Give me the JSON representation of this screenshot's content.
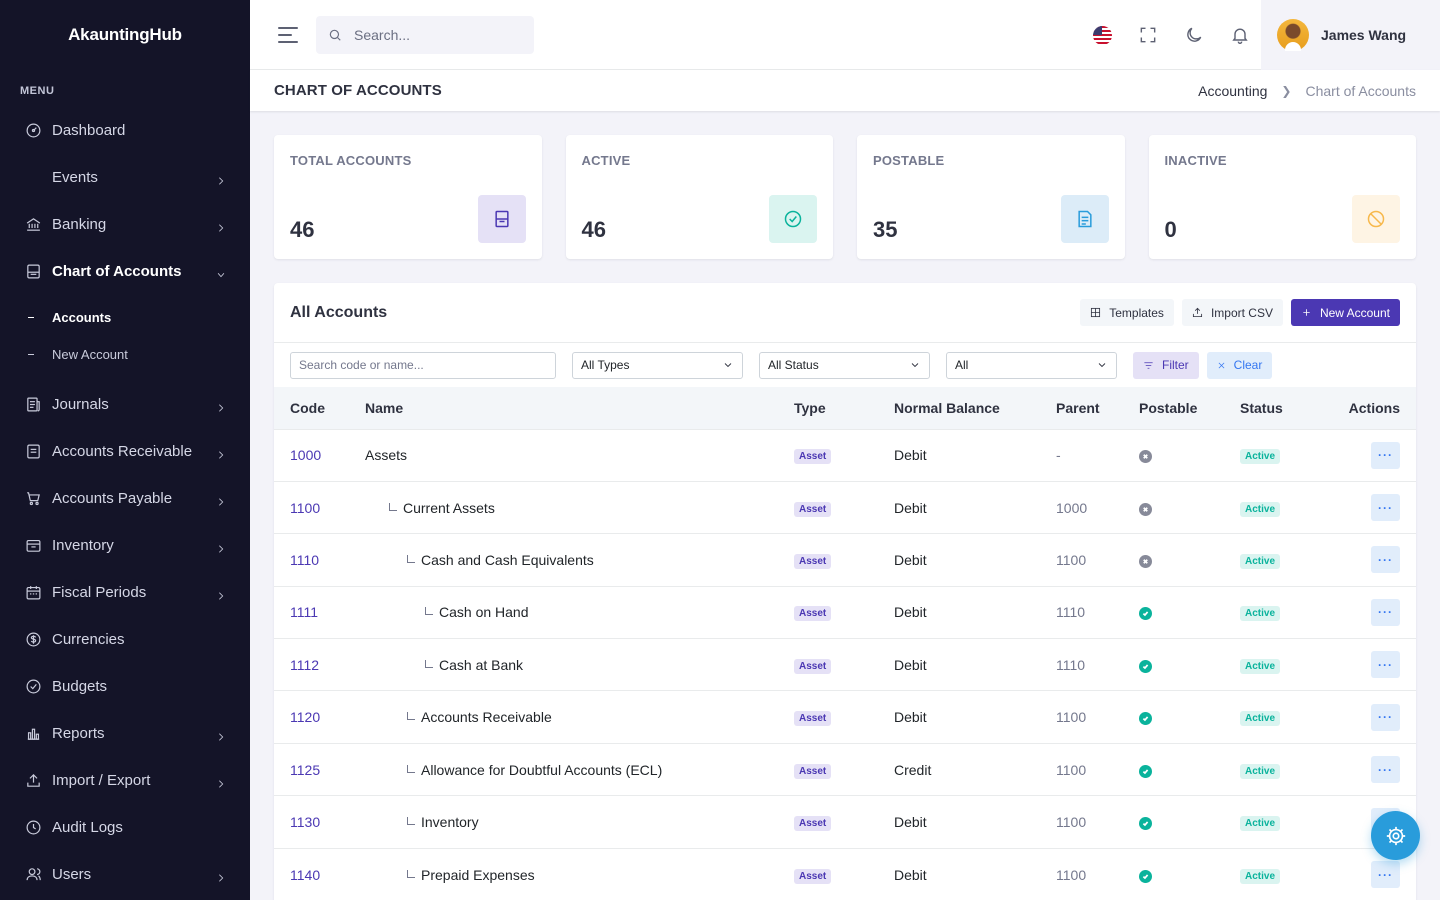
{
  "app": {
    "brand": "AkauntingHub"
  },
  "sidebar": {
    "menu_title": "MENU",
    "items": [
      {
        "label": "Dashboard",
        "icon": "dashboard-icon",
        "chevron": false
      },
      {
        "label": "Events",
        "icon": "",
        "chevron": true
      },
      {
        "label": "Banking",
        "icon": "bank-icon",
        "chevron": true
      },
      {
        "label": "Chart of Accounts",
        "icon": "ledger-icon",
        "chevron": true,
        "open": true
      },
      {
        "label": "Journals",
        "icon": "journal-icon",
        "chevron": true
      },
      {
        "label": "Accounts Receivable",
        "icon": "receivable-icon",
        "chevron": true
      },
      {
        "label": "Accounts Payable",
        "icon": "cart-icon",
        "chevron": true
      },
      {
        "label": "Inventory",
        "icon": "inventory-icon",
        "chevron": true
      },
      {
        "label": "Fiscal Periods",
        "icon": "calendar-icon",
        "chevron": true
      },
      {
        "label": "Currencies",
        "icon": "currency-icon",
        "chevron": false
      },
      {
        "label": "Budgets",
        "icon": "budget-icon",
        "chevron": false
      },
      {
        "label": "Reports",
        "icon": "bar-chart-icon",
        "chevron": true
      },
      {
        "label": "Import / Export",
        "icon": "upload-icon",
        "chevron": true
      },
      {
        "label": "Audit Logs",
        "icon": "history-icon",
        "chevron": false
      },
      {
        "label": "Users",
        "icon": "users-icon",
        "chevron": true
      }
    ],
    "subitems": [
      {
        "label": "Accounts",
        "active": true
      },
      {
        "label": "New Account",
        "active": false
      }
    ]
  },
  "topbar": {
    "search_placeholder": "Search...",
    "user_name": "James Wang"
  },
  "page": {
    "title": "CHART OF ACCOUNTS",
    "breadcrumb": [
      "Accounting",
      "Chart of Accounts"
    ]
  },
  "stats": [
    {
      "label": "TOTAL ACCOUNTS",
      "value": "46",
      "icon": "book-icon",
      "color": "#4b38b3",
      "bg": "#e5e1f6"
    },
    {
      "label": "ACTIVE",
      "value": "46",
      "icon": "check-circle-icon",
      "color": "#0ab39c",
      "bg": "#daf4f0"
    },
    {
      "label": "POSTABLE",
      "value": "35",
      "icon": "file-text-icon",
      "color": "#299cdb",
      "bg": "#dcecf8"
    },
    {
      "label": "INACTIVE",
      "value": "0",
      "icon": "ban-icon",
      "color": "#f7b84b",
      "bg": "#fef4e4"
    }
  ],
  "accounts": {
    "title": "All Accounts",
    "buttons": {
      "templates": "Templates",
      "import": "Import CSV",
      "new": "New Account"
    },
    "filters": {
      "search_placeholder": "Search code or name...",
      "type": "All Types",
      "status": "All Status",
      "postable": "All",
      "filter_label": "Filter",
      "clear_label": "Clear"
    },
    "columns": [
      "Code",
      "Name",
      "Type",
      "Normal Balance",
      "Parent",
      "Postable",
      "Status",
      "Actions"
    ],
    "rows": [
      {
        "code": "1000",
        "name": "Assets",
        "depth": 0,
        "type": "Asset",
        "balance": "Debit",
        "parent": "-",
        "postable": false,
        "status": "Active"
      },
      {
        "code": "1100",
        "name": "Current Assets",
        "depth": 1,
        "type": "Asset",
        "balance": "Debit",
        "parent": "1000",
        "postable": false,
        "status": "Active"
      },
      {
        "code": "1110",
        "name": "Cash and Cash Equivalents",
        "depth": 2,
        "type": "Asset",
        "balance": "Debit",
        "parent": "1100",
        "postable": false,
        "status": "Active"
      },
      {
        "code": "1111",
        "name": "Cash on Hand",
        "depth": 3,
        "type": "Asset",
        "balance": "Debit",
        "parent": "1110",
        "postable": true,
        "status": "Active"
      },
      {
        "code": "1112",
        "name": "Cash at Bank",
        "depth": 3,
        "type": "Asset",
        "balance": "Debit",
        "parent": "1110",
        "postable": true,
        "status": "Active"
      },
      {
        "code": "1120",
        "name": "Accounts Receivable",
        "depth": 2,
        "type": "Asset",
        "balance": "Debit",
        "parent": "1100",
        "postable": true,
        "status": "Active"
      },
      {
        "code": "1125",
        "name": "Allowance for Doubtful Accounts (ECL)",
        "depth": 2,
        "type": "Asset",
        "balance": "Credit",
        "parent": "1100",
        "postable": true,
        "status": "Active"
      },
      {
        "code": "1130",
        "name": "Inventory",
        "depth": 2,
        "type": "Asset",
        "balance": "Debit",
        "parent": "1100",
        "postable": true,
        "status": "Active"
      },
      {
        "code": "1140",
        "name": "Prepaid Expenses",
        "depth": 2,
        "type": "Asset",
        "balance": "Debit",
        "parent": "1100",
        "postable": true,
        "status": "Active"
      }
    ],
    "action_label": "···"
  }
}
